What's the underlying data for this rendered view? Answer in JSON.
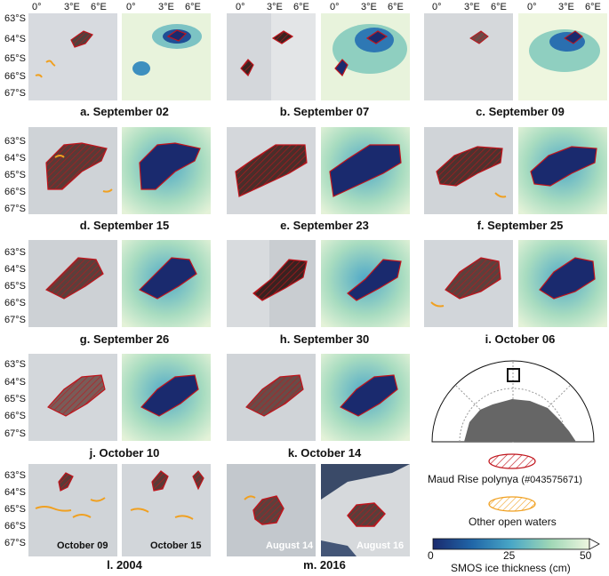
{
  "figure": {
    "x_ticks": [
      "0°",
      "3°E",
      "6°E"
    ],
    "y_ticks": [
      "63°S",
      "64°S",
      "65°S",
      "66°S",
      "67°S"
    ],
    "captions": {
      "a": "a. September 02",
      "b": "b. September 07",
      "c": "c. September 09",
      "d": "d. September 15",
      "e": "e. September 23",
      "f": "f. September 25",
      "g": "g. September 26",
      "h": "h. September 30",
      "i": "i. October 06",
      "j": "j. October 10",
      "k": "k. October 14",
      "l": "l. 2004",
      "m": "m. 2016"
    },
    "inset_labels": {
      "l_left": "October 09",
      "l_right": "October 15",
      "m_left": "August 14",
      "m_right": "August 16"
    },
    "legend": {
      "polynya_label": "Maud Rise polynya",
      "polynya_id": "(#043575671)",
      "open_water_label": "Other open waters",
      "colorbar_label": "SMOS ice thickness (cm)",
      "colorbar_ticks": [
        "0",
        "25",
        "50"
      ]
    },
    "colors": {
      "polynya_outline": "#c0141c",
      "open_water": "#f0a020",
      "smos_thin": "#1a2a6e",
      "smos_thick": "#eef6df",
      "land": "#666666"
    }
  }
}
